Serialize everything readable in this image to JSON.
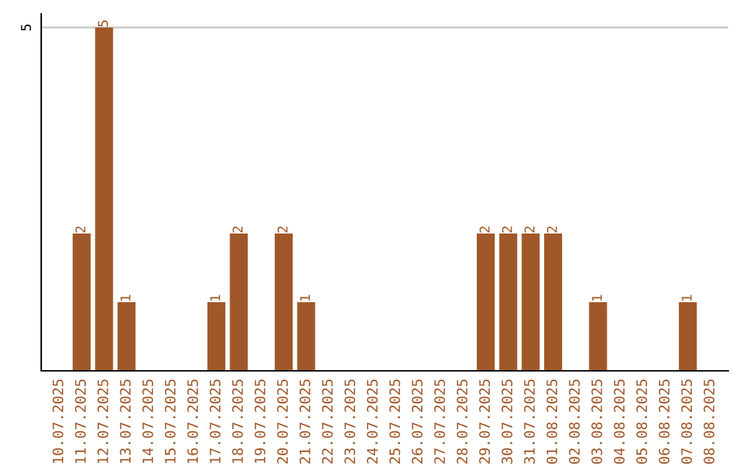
{
  "chart_data": {
    "type": "bar",
    "categories": [
      "10.07.2025",
      "11.07.2025",
      "12.07.2025",
      "13.07.2025",
      "14.07.2025",
      "15.07.2025",
      "16.07.2025",
      "17.07.2025",
      "18.07.2025",
      "19.07.2025",
      "20.07.2025",
      "21.07.2025",
      "22.07.2025",
      "23.07.2025",
      "24.07.2025",
      "25.07.2025",
      "26.07.2025",
      "27.07.2025",
      "28.07.2025",
      "29.07.2025",
      "30.07.2025",
      "31.07.2025",
      "01.08.2025",
      "02.08.2025",
      "03.08.2025",
      "04.08.2025",
      "05.08.2025",
      "06.08.2025",
      "07.08.2025",
      "08.08.2025"
    ],
    "values": [
      0,
      2,
      5,
      1,
      0,
      0,
      0,
      1,
      2,
      0,
      2,
      1,
      0,
      0,
      0,
      0,
      0,
      0,
      0,
      2,
      2,
      2,
      2,
      0,
      1,
      0,
      0,
      0,
      1,
      0
    ],
    "value_labels": [
      null,
      "2",
      "5",
      "1",
      null,
      null,
      null,
      "1",
      "2",
      null,
      "2",
      "1",
      null,
      null,
      null,
      null,
      null,
      null,
      null,
      "2",
      "2",
      "2",
      "2",
      null,
      "1",
      null,
      null,
      null,
      "1",
      null
    ],
    "color": "#a0582a",
    "ylim": [
      0,
      5.2
    ],
    "yticks": [
      5
    ],
    "grid": "y"
  }
}
